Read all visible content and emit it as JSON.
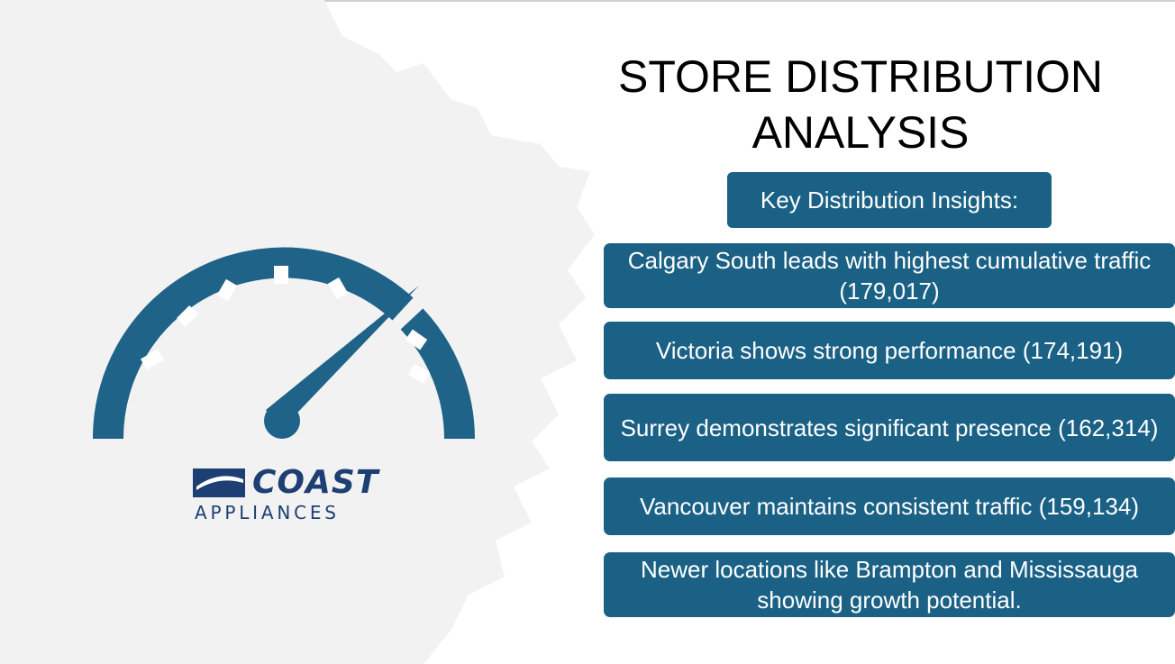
{
  "slide": {
    "title_line1": "STORE DISTRIBUTION",
    "title_line2": "ANALYSIS",
    "insights_header": "Key Distribution Insights:",
    "insights": [
      "Calgary South leads with highest cumulative traffic (179,017)",
      "Victoria shows strong performance (174,191)",
      "Surrey demonstrates significant presence (162,314)",
      "Vancouver maintains consistent traffic (159,134)",
      "Newer locations like Brampton and Mississauga showing growth potential."
    ]
  },
  "logo": {
    "name": "COAST",
    "subtitle": "APPLIANCES"
  },
  "icons": {
    "gauge": "speedometer-icon",
    "logo_mark": "coast-logo-mark-icon"
  },
  "colors": {
    "accent": "#1a6185",
    "gauge": "#1f6388",
    "logo": "#1d3f73",
    "texture": "#f2f2f2"
  }
}
